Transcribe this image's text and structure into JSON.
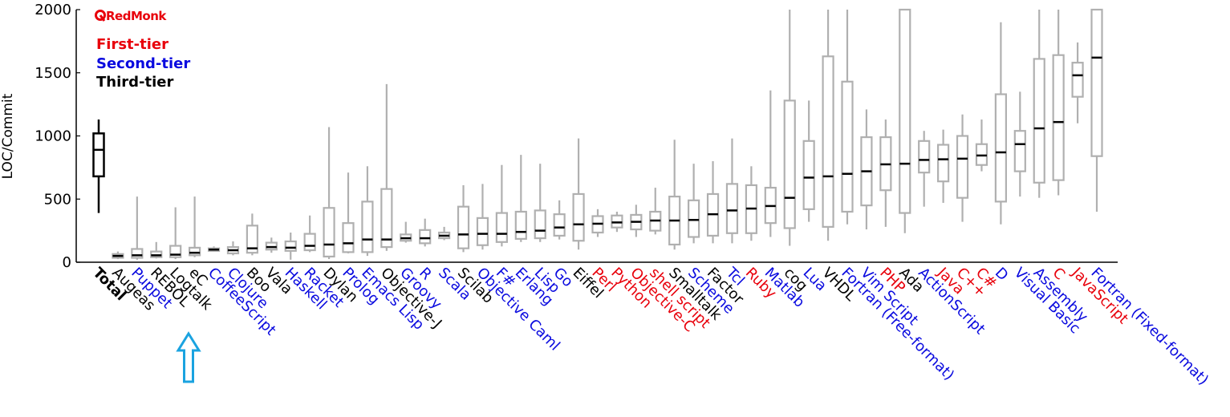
{
  "chart_data": {
    "type": "boxplot",
    "ylabel": "LOC/Commit",
    "ylim": [
      0,
      2000
    ],
    "yticks": [
      0,
      500,
      1000,
      1500,
      2000
    ],
    "logo": "RedMonk",
    "legend": {
      "placement": "top-left",
      "entries": [
        {
          "label": "First-tier",
          "color": "#e8000b"
        },
        {
          "label": "Second-tier",
          "color": "#0a0adf"
        },
        {
          "label": "Third-tier",
          "color": "#000000"
        }
      ]
    },
    "tier_colors": {
      "total": "#000000",
      "1": "#e8000b",
      "2": "#0a0adf",
      "3": "#000000"
    },
    "box_color": "#b0b0b0",
    "total_box_color": "#000000",
    "annotation": {
      "type": "arrow-up",
      "color": "#1aa3e0",
      "target": "eC"
    },
    "categories": [
      {
        "name": "Total",
        "tier": "total",
        "whislo": 390,
        "q1": 680,
        "med": 890,
        "q3": 1020,
        "whishi": 1130
      },
      {
        "name": "Augeas",
        "tier": 3,
        "whislo": 25,
        "q1": 35,
        "med": 50,
        "q3": 65,
        "whishi": 85
      },
      {
        "name": "Puppet",
        "tier": 2,
        "whislo": 20,
        "q1": 35,
        "med": 55,
        "q3": 105,
        "whishi": 520
      },
      {
        "name": "REBOL",
        "tier": 3,
        "whislo": 30,
        "q1": 40,
        "med": 55,
        "q3": 85,
        "whishi": 160
      },
      {
        "name": "Logtalk",
        "tier": 3,
        "whislo": 25,
        "q1": 40,
        "med": 60,
        "q3": 130,
        "whishi": 435
      },
      {
        "name": "eC",
        "tier": 3,
        "whislo": 40,
        "q1": 55,
        "med": 75,
        "q3": 115,
        "whishi": 520
      },
      {
        "name": "CoffeeScript",
        "tier": 2,
        "whislo": 85,
        "q1": 90,
        "med": 100,
        "q3": 110,
        "whishi": 125
      },
      {
        "name": "Clojure",
        "tier": 2,
        "whislo": 55,
        "q1": 70,
        "med": 95,
        "q3": 120,
        "whishi": 165
      },
      {
        "name": "Boo",
        "tier": 3,
        "whislo": 55,
        "q1": 75,
        "med": 110,
        "q3": 290,
        "whishi": 385
      },
      {
        "name": "Vala",
        "tier": 3,
        "whislo": 75,
        "q1": 100,
        "med": 120,
        "q3": 155,
        "whishi": 195
      },
      {
        "name": "Haskell",
        "tier": 2,
        "whislo": 20,
        "q1": 90,
        "med": 115,
        "q3": 165,
        "whishi": 235
      },
      {
        "name": "Racket",
        "tier": 2,
        "whislo": 80,
        "q1": 95,
        "med": 130,
        "q3": 225,
        "whishi": 370
      },
      {
        "name": "Dylan",
        "tier": 3,
        "whislo": 25,
        "q1": 45,
        "med": 140,
        "q3": 430,
        "whishi": 1070
      },
      {
        "name": "Prolog",
        "tier": 2,
        "whislo": 70,
        "q1": 80,
        "med": 150,
        "q3": 310,
        "whishi": 710
      },
      {
        "name": "Emacs Lisp",
        "tier": 2,
        "whislo": 50,
        "q1": 80,
        "med": 180,
        "q3": 480,
        "whishi": 760
      },
      {
        "name": "Objective-J",
        "tier": 3,
        "whislo": 90,
        "q1": 120,
        "med": 180,
        "q3": 580,
        "whishi": 1410
      },
      {
        "name": "Groovy",
        "tier": 2,
        "whislo": 155,
        "q1": 170,
        "med": 190,
        "q3": 220,
        "whishi": 320
      },
      {
        "name": "R",
        "tier": 2,
        "whislo": 125,
        "q1": 150,
        "med": 190,
        "q3": 255,
        "whishi": 345
      },
      {
        "name": "Scala",
        "tier": 2,
        "whislo": 175,
        "q1": 190,
        "med": 210,
        "q3": 235,
        "whishi": 280
      },
      {
        "name": "Scilab",
        "tier": 3,
        "whislo": 80,
        "q1": 110,
        "med": 220,
        "q3": 440,
        "whishi": 610
      },
      {
        "name": "Objective Caml",
        "tier": 2,
        "whislo": 100,
        "q1": 135,
        "med": 225,
        "q3": 350,
        "whishi": 620
      },
      {
        "name": "F#",
        "tier": 2,
        "whislo": 125,
        "q1": 160,
        "med": 225,
        "q3": 390,
        "whishi": 770
      },
      {
        "name": "Erlang",
        "tier": 2,
        "whislo": 160,
        "q1": 185,
        "med": 240,
        "q3": 400,
        "whishi": 850
      },
      {
        "name": "Lisp",
        "tier": 2,
        "whislo": 160,
        "q1": 190,
        "med": 250,
        "q3": 410,
        "whishi": 780
      },
      {
        "name": "Go",
        "tier": 2,
        "whislo": 180,
        "q1": 210,
        "med": 275,
        "q3": 380,
        "whishi": 490
      },
      {
        "name": "Eiffel",
        "tier": 3,
        "whislo": 100,
        "q1": 170,
        "med": 300,
        "q3": 540,
        "whishi": 980
      },
      {
        "name": "Perl",
        "tier": 1,
        "whislo": 200,
        "q1": 235,
        "med": 305,
        "q3": 365,
        "whishi": 420
      },
      {
        "name": "Python",
        "tier": 1,
        "whislo": 240,
        "q1": 275,
        "med": 315,
        "q3": 370,
        "whishi": 400
      },
      {
        "name": "Objective-C",
        "tier": 1,
        "whislo": 200,
        "q1": 260,
        "med": 320,
        "q3": 375,
        "whishi": 455
      },
      {
        "name": "shell script",
        "tier": 1,
        "whislo": 220,
        "q1": 250,
        "med": 330,
        "q3": 400,
        "whishi": 590
      },
      {
        "name": "Smalltalk",
        "tier": 3,
        "whislo": 100,
        "q1": 140,
        "med": 330,
        "q3": 520,
        "whishi": 970
      },
      {
        "name": "Scheme",
        "tier": 2,
        "whislo": 150,
        "q1": 200,
        "med": 335,
        "q3": 490,
        "whishi": 780
      },
      {
        "name": "Factor",
        "tier": 3,
        "whislo": 150,
        "q1": 210,
        "med": 380,
        "q3": 540,
        "whishi": 800
      },
      {
        "name": "Tcl",
        "tier": 2,
        "whislo": 150,
        "q1": 230,
        "med": 410,
        "q3": 620,
        "whishi": 980
      },
      {
        "name": "Ruby",
        "tier": 1,
        "whislo": 170,
        "q1": 230,
        "med": 425,
        "q3": 610,
        "whishi": 760
      },
      {
        "name": "Matlab",
        "tier": 2,
        "whislo": 200,
        "q1": 310,
        "med": 445,
        "q3": 590,
        "whishi": 1360
      },
      {
        "name": "cog",
        "tier": 3,
        "whislo": 130,
        "q1": 270,
        "med": 510,
        "q3": 1280,
        "whishi": 2000
      },
      {
        "name": "Lua",
        "tier": 2,
        "whislo": 320,
        "q1": 420,
        "med": 670,
        "q3": 960,
        "whishi": 1280
      },
      {
        "name": "VHDL",
        "tier": 3,
        "whislo": 170,
        "q1": 280,
        "med": 680,
        "q3": 1630,
        "whishi": 2000
      },
      {
        "name": "Fortran (Free-format)",
        "tier": 2,
        "whislo": 300,
        "q1": 400,
        "med": 700,
        "q3": 1430,
        "whishi": 2000
      },
      {
        "name": "Vim Script",
        "tier": 2,
        "whislo": 260,
        "q1": 450,
        "med": 720,
        "q3": 990,
        "whishi": 1210
      },
      {
        "name": "PHP",
        "tier": 1,
        "whislo": 280,
        "q1": 570,
        "med": 775,
        "q3": 990,
        "whishi": 1130
      },
      {
        "name": "Ada",
        "tier": 3,
        "whislo": 230,
        "q1": 390,
        "med": 780,
        "q3": 2000,
        "whishi": 2000
      },
      {
        "name": "ActionScript",
        "tier": 2,
        "whislo": 440,
        "q1": 710,
        "med": 810,
        "q3": 960,
        "whishi": 1040
      },
      {
        "name": "Java",
        "tier": 1,
        "whislo": 470,
        "q1": 640,
        "med": 815,
        "q3": 930,
        "whishi": 1050
      },
      {
        "name": "C++",
        "tier": 1,
        "whislo": 320,
        "q1": 510,
        "med": 820,
        "q3": 1000,
        "whishi": 1170
      },
      {
        "name": "C#",
        "tier": 1,
        "whislo": 720,
        "q1": 770,
        "med": 845,
        "q3": 935,
        "whishi": 1130
      },
      {
        "name": "D",
        "tier": 2,
        "whislo": 300,
        "q1": 480,
        "med": 870,
        "q3": 1330,
        "whishi": 1900
      },
      {
        "name": "Visual Basic",
        "tier": 2,
        "whislo": 520,
        "q1": 720,
        "med": 935,
        "q3": 1040,
        "whishi": 1350
      },
      {
        "name": "Assembly",
        "tier": 2,
        "whislo": 510,
        "q1": 630,
        "med": 1060,
        "q3": 1610,
        "whishi": 2000
      },
      {
        "name": "C",
        "tier": 1,
        "whislo": 530,
        "q1": 650,
        "med": 1110,
        "q3": 1640,
        "whishi": 2000
      },
      {
        "name": "JavaScript",
        "tier": 1,
        "whislo": 1100,
        "q1": 1310,
        "med": 1480,
        "q3": 1580,
        "whishi": 1740
      },
      {
        "name": "Fortran (Fixed-format)",
        "tier": 2,
        "whislo": 400,
        "q1": 840,
        "med": 1620,
        "q3": 2000,
        "whishi": 2000
      }
    ]
  }
}
